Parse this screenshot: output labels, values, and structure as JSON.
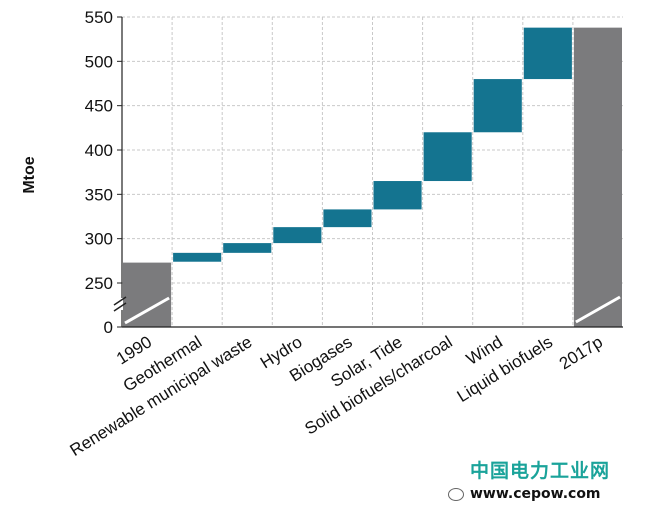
{
  "chart_data": {
    "type": "bar",
    "subtype": "waterfall",
    "ylabel": "Mtoe",
    "ylim": [
      0,
      550
    ],
    "axis_break": true,
    "yticks": [
      0,
      250,
      300,
      350,
      400,
      450,
      500,
      550
    ],
    "grid": true,
    "categories": [
      "1990",
      "Geothermal",
      "Renewable municipal waste",
      "Hydro",
      "Biogases",
      "Solar, Tide",
      "Solid biofuels/charcoal",
      "Wind",
      "Liquid biofuels",
      "2017p"
    ],
    "steps": [
      {
        "label": "1990",
        "kind": "total",
        "start": 0,
        "end": 273
      },
      {
        "label": "Geothermal",
        "kind": "increase",
        "start": 274,
        "end": 284
      },
      {
        "label": "Renewable municipal waste",
        "kind": "increase",
        "start": 284,
        "end": 295
      },
      {
        "label": "Hydro",
        "kind": "increase",
        "start": 295,
        "end": 313
      },
      {
        "label": "Biogases",
        "kind": "increase",
        "start": 313,
        "end": 333
      },
      {
        "label": "Solar, Tide",
        "kind": "increase",
        "start": 333,
        "end": 365
      },
      {
        "label": "Solid biofuels/charcoal",
        "kind": "increase",
        "start": 365,
        "end": 420
      },
      {
        "label": "Wind",
        "kind": "increase",
        "start": 420,
        "end": 480
      },
      {
        "label": "Liquid biofuels",
        "kind": "increase",
        "start": 480,
        "end": 538
      },
      {
        "label": "2017p",
        "kind": "total",
        "start": 0,
        "end": 538
      }
    ],
    "colors": {
      "total": "#7b7b7d",
      "increase": "#147490",
      "grid": "#c9c9c9",
      "axis": "#222222"
    }
  },
  "watermark": {
    "site_name": "中国电力工业网",
    "url": "www.cepow.com"
  }
}
